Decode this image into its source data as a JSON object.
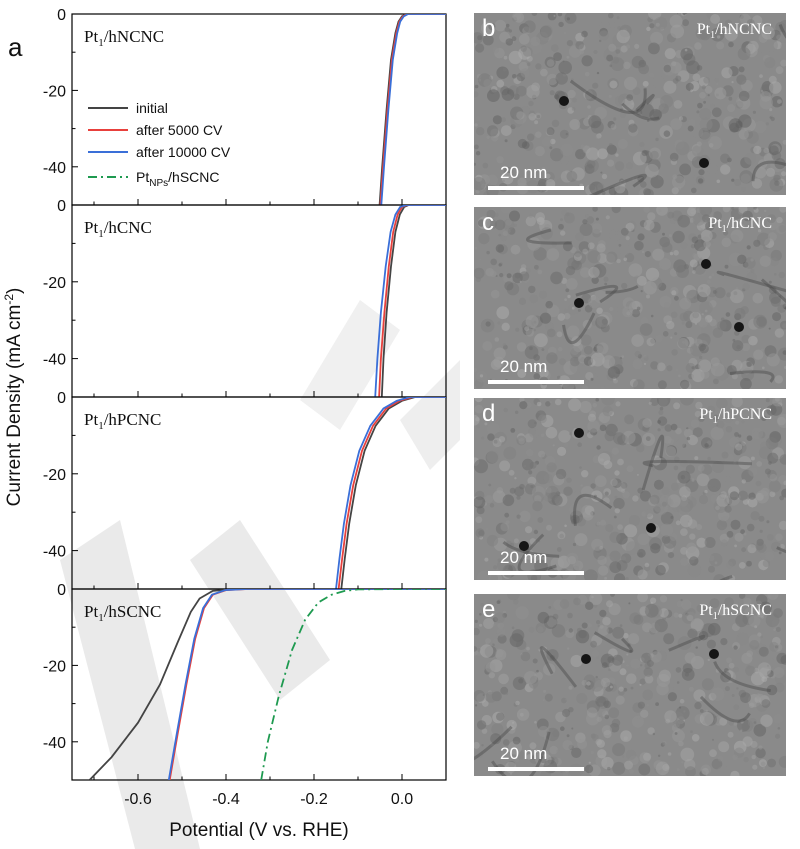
{
  "panel_letter_a": "a",
  "chart_data": [
    {
      "type": "line",
      "title": "Pt1/hNCNC",
      "xlabel": "Potential (V vs. RHE)",
      "ylabel": "Current Density (mA cm-2)",
      "xlim": [
        -0.75,
        0.1
      ],
      "ylim": [
        -50,
        0
      ],
      "yticks": [
        0,
        -20,
        -40
      ],
      "legend_position": "center-left",
      "series": [
        {
          "name": "initial",
          "color": "#444444",
          "style": "solid",
          "x": [
            -0.051,
            -0.045,
            -0.035,
            -0.025,
            -0.015,
            -0.008,
            0.0,
            0.01,
            0.1
          ],
          "y": [
            -50,
            -40,
            -25,
            -12,
            -5,
            -2,
            -0.6,
            0,
            0
          ]
        },
        {
          "name": "after 5000 CV",
          "color": "#e8403c",
          "style": "solid",
          "x": [
            -0.049,
            -0.043,
            -0.033,
            -0.023,
            -0.013,
            -0.006,
            0.002,
            0.012,
            0.1
          ],
          "y": [
            -50,
            -40,
            -25,
            -12,
            -5,
            -2,
            -0.6,
            0,
            0
          ]
        },
        {
          "name": "after 10000 CV",
          "color": "#3a6fd8",
          "style": "solid",
          "x": [
            -0.047,
            -0.041,
            -0.031,
            -0.021,
            -0.011,
            -0.004,
            0.004,
            0.014,
            0.1
          ],
          "y": [
            -50,
            -40,
            -25,
            -12,
            -5,
            -2,
            -0.6,
            0,
            0
          ]
        },
        {
          "name": "Pt_NPs/hSCNC",
          "color": "#1e9a50",
          "style": "dashdot",
          "x": [],
          "y": []
        }
      ]
    },
    {
      "type": "line",
      "title": "Pt1/hCNC",
      "xlim": [
        -0.75,
        0.1
      ],
      "ylim": [
        -50,
        0
      ],
      "yticks": [
        0,
        -20,
        -40
      ],
      "series": [
        {
          "name": "initial",
          "color": "#444444",
          "style": "solid",
          "x": [
            -0.046,
            -0.042,
            -0.035,
            -0.025,
            -0.015,
            -0.005,
            0.005,
            0.015,
            0.1
          ],
          "y": [
            -50,
            -40,
            -28,
            -16,
            -7,
            -2.5,
            -0.5,
            0,
            0
          ]
        },
        {
          "name": "after 5000 CV",
          "color": "#e8403c",
          "style": "solid",
          "x": [
            -0.052,
            -0.048,
            -0.04,
            -0.03,
            -0.02,
            -0.01,
            0.0,
            0.012,
            0.1
          ],
          "y": [
            -50,
            -40,
            -28,
            -16,
            -7,
            -2.5,
            -0.5,
            0,
            0
          ]
        },
        {
          "name": "after 10000 CV",
          "color": "#3a6fd8",
          "style": "solid",
          "x": [
            -0.061,
            -0.056,
            -0.048,
            -0.037,
            -0.026,
            -0.015,
            -0.004,
            0.01,
            0.1
          ],
          "y": [
            -50,
            -40,
            -28,
            -16,
            -7,
            -2.5,
            -0.5,
            0,
            0
          ]
        }
      ]
    },
    {
      "type": "line",
      "title": "Pt1/hPCNC",
      "xlim": [
        -0.75,
        0.1
      ],
      "ylim": [
        -50,
        0
      ],
      "yticks": [
        0,
        -20,
        -40
      ],
      "series": [
        {
          "name": "initial",
          "color": "#444444",
          "style": "solid",
          "x": [
            -0.138,
            -0.13,
            -0.12,
            -0.105,
            -0.085,
            -0.06,
            -0.03,
            0.0,
            0.03,
            0.1
          ],
          "y": [
            -50,
            -42,
            -33,
            -23,
            -14,
            -7.5,
            -3,
            -1,
            0,
            0
          ]
        },
        {
          "name": "after 5000 CV",
          "color": "#e8403c",
          "style": "solid",
          "x": [
            -0.144,
            -0.136,
            -0.126,
            -0.111,
            -0.091,
            -0.066,
            -0.036,
            -0.006,
            0.024,
            0.1
          ],
          "y": [
            -50,
            -42,
            -33,
            -23,
            -14,
            -7.5,
            -3,
            -1,
            0,
            0
          ]
        },
        {
          "name": "after 10000 CV",
          "color": "#3a6fd8",
          "style": "solid",
          "x": [
            -0.15,
            -0.142,
            -0.132,
            -0.117,
            -0.097,
            -0.072,
            -0.042,
            -0.012,
            0.018,
            0.1
          ],
          "y": [
            -50,
            -42,
            -33,
            -23,
            -14,
            -7.5,
            -3,
            -1,
            0,
            0
          ]
        }
      ]
    },
    {
      "type": "line",
      "title": "Pt1/hSCNC",
      "xlabel": "Potential (V vs. RHE)",
      "xlim": [
        -0.75,
        0.1
      ],
      "ylim": [
        -50,
        0
      ],
      "xticks": [
        -0.6,
        -0.4,
        -0.2,
        0.0
      ],
      "xtick_labels": [
        "-0.6",
        "-0.4",
        "-0.2",
        "0.0"
      ],
      "yticks": [
        0,
        -20,
        -40
      ],
      "series": [
        {
          "name": "initial",
          "color": "#444444",
          "style": "solid",
          "x": [
            -0.71,
            -0.66,
            -0.6,
            -0.55,
            -0.51,
            -0.48,
            -0.46,
            -0.43,
            -0.38,
            0.1
          ],
          "y": [
            -50,
            -44,
            -35,
            -25,
            -14,
            -6,
            -2.5,
            -0.5,
            0,
            0
          ]
        },
        {
          "name": "after 5000 CV",
          "color": "#e8403c",
          "style": "solid",
          "x": [
            -0.528,
            -0.51,
            -0.49,
            -0.47,
            -0.45,
            -0.43,
            -0.4,
            -0.35,
            0.1
          ],
          "y": [
            -50,
            -38,
            -25,
            -13,
            -5,
            -1.5,
            -0.3,
            0,
            0
          ]
        },
        {
          "name": "after 10000 CV",
          "color": "#3a6fd8",
          "style": "solid",
          "x": [
            -0.53,
            -0.512,
            -0.492,
            -0.472,
            -0.452,
            -0.432,
            -0.402,
            -0.352,
            0.1
          ],
          "y": [
            -50,
            -38,
            -25,
            -13,
            -5,
            -1.5,
            -0.3,
            0,
            0
          ]
        },
        {
          "name": "Pt_NPs/hSCNC",
          "color": "#1e9a50",
          "style": "dashdot",
          "x": [
            -0.32,
            -0.305,
            -0.28,
            -0.25,
            -0.22,
            -0.19,
            -0.16,
            -0.13,
            -0.1,
            0.0,
            0.1
          ],
          "y": [
            -50,
            -40,
            -28,
            -16,
            -8,
            -3.5,
            -1.5,
            -0.5,
            -0.1,
            0,
            0
          ]
        }
      ]
    }
  ],
  "tem_panels": [
    {
      "letter": "b",
      "sample_prefix": "Pt",
      "sample_sub": "1",
      "sample_suffix": "/hNCNC",
      "scale": "20 nm"
    },
    {
      "letter": "c",
      "sample_prefix": "Pt",
      "sample_sub": "1",
      "sample_suffix": "/hCNC",
      "scale": "20 nm"
    },
    {
      "letter": "d",
      "sample_prefix": "Pt",
      "sample_sub": "1",
      "sample_suffix": "/hPCNC",
      "scale": "20 nm"
    },
    {
      "letter": "e",
      "sample_prefix": "Pt",
      "sample_sub": "1",
      "sample_suffix": "/hSCNC",
      "scale": "20 nm"
    }
  ]
}
